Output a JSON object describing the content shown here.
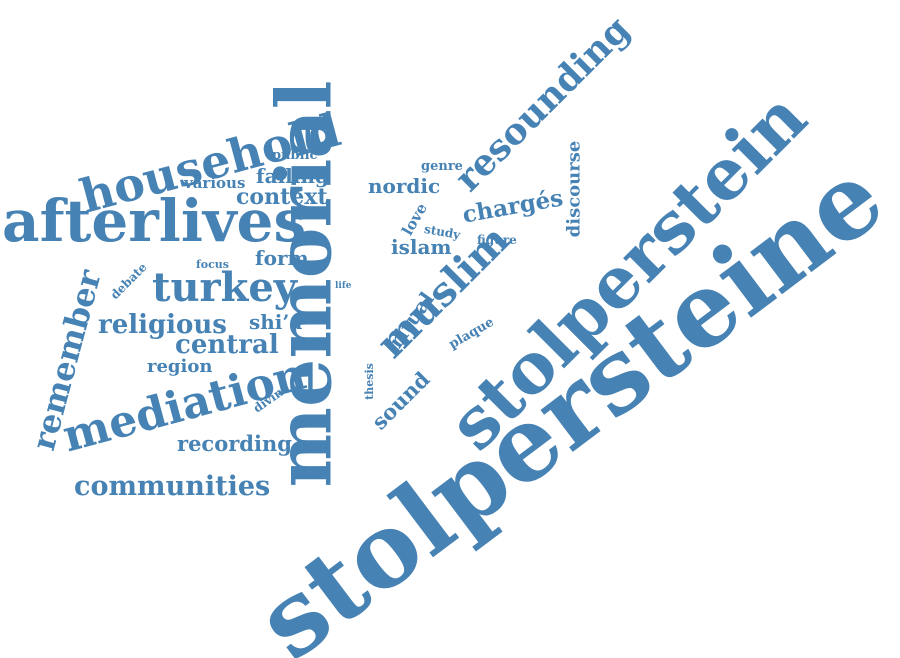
{
  "cloud": {
    "color": "#4682b4",
    "words": [
      {
        "key": "stolpersteine",
        "text": "stolpersteine"
      },
      {
        "key": "stolperstein",
        "text": "stolperstein"
      },
      {
        "key": "memorial",
        "text": "memorial"
      },
      {
        "key": "afterlives",
        "text": "afterlives"
      },
      {
        "key": "household",
        "text": "household"
      },
      {
        "key": "mediation",
        "text": "mediation"
      },
      {
        "key": "muslim",
        "text": "muslim"
      },
      {
        "key": "turkey",
        "text": "turkey"
      },
      {
        "key": "resounding",
        "text": "resounding"
      },
      {
        "key": "remember",
        "text": "remember"
      },
      {
        "key": "communities",
        "text": "communities"
      },
      {
        "key": "religious",
        "text": "religious"
      },
      {
        "key": "central",
        "text": "central"
      },
      {
        "key": "charges",
        "text": "chargés"
      },
      {
        "key": "context",
        "text": "context"
      },
      {
        "key": "recording",
        "text": "recording"
      },
      {
        "key": "sound",
        "text": "sound"
      },
      {
        "key": "nordic",
        "text": "nordic"
      },
      {
        "key": "failing",
        "text": "failing"
      },
      {
        "key": "discourse",
        "text": "discourse"
      },
      {
        "key": "ritual",
        "text": "ritual"
      },
      {
        "key": "islam",
        "text": "islam"
      },
      {
        "key": "shia",
        "text": "shi’a"
      },
      {
        "key": "form",
        "text": "form"
      },
      {
        "key": "region",
        "text": "region"
      },
      {
        "key": "various",
        "text": "various"
      },
      {
        "key": "public",
        "text": "public"
      },
      {
        "key": "love",
        "text": "love"
      },
      {
        "key": "genre",
        "text": "genre"
      },
      {
        "key": "study",
        "text": "study"
      },
      {
        "key": "figure",
        "text": "figure"
      },
      {
        "key": "plaque",
        "text": "plaque"
      },
      {
        "key": "thesis",
        "text": "thesis"
      },
      {
        "key": "debate",
        "text": "debate"
      },
      {
        "key": "focus",
        "text": "focus"
      },
      {
        "key": "divine",
        "text": "divine"
      },
      {
        "key": "life",
        "text": "life"
      }
    ]
  }
}
